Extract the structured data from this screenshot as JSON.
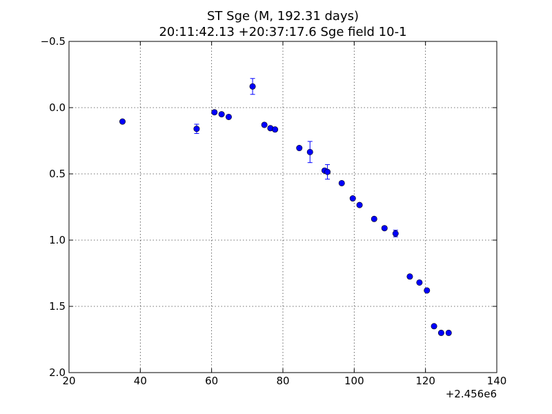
{
  "chart_data": {
    "type": "scatter",
    "title_line1": "ST Sge (M, 192.31 days)",
    "title_line2": "20:11:42.13 +20:37:17.6 Sge field 10-1",
    "xlabel": "",
    "ylabel": "",
    "x_offset_label": "+2.456e6",
    "xlim": [
      20,
      140
    ],
    "ylim": [
      -0.5,
      2.0
    ],
    "y_inverted": true,
    "grid": true,
    "xticks": [
      20,
      40,
      60,
      80,
      100,
      120,
      140
    ],
    "xtick_labels": [
      "20",
      "40",
      "60",
      "80",
      "100",
      "120",
      "140"
    ],
    "yticks": [
      -0.5,
      0.0,
      0.5,
      1.0,
      1.5,
      2.0
    ],
    "ytick_labels": [
      "−0.5",
      "0.0",
      "0.5",
      "1.0",
      "1.5",
      "2.0"
    ],
    "marker_color": "#0000ff",
    "errorbar_color": "#0000ff",
    "points": [
      {
        "x": 35.0,
        "y": 0.105,
        "err": 0.0
      },
      {
        "x": 55.8,
        "y": 0.16,
        "err": 0.035
      },
      {
        "x": 60.8,
        "y": 0.035,
        "err": 0.0
      },
      {
        "x": 62.8,
        "y": 0.05,
        "err": 0.0
      },
      {
        "x": 64.8,
        "y": 0.07,
        "err": 0.0
      },
      {
        "x": 71.5,
        "y": -0.16,
        "err": 0.06
      },
      {
        "x": 74.8,
        "y": 0.13,
        "err": 0.0
      },
      {
        "x": 76.5,
        "y": 0.155,
        "err": 0.0
      },
      {
        "x": 77.8,
        "y": 0.165,
        "err": 0.0
      },
      {
        "x": 84.6,
        "y": 0.305,
        "err": 0.0
      },
      {
        "x": 87.6,
        "y": 0.335,
        "err": 0.08
      },
      {
        "x": 91.7,
        "y": 0.475,
        "err": 0.0
      },
      {
        "x": 92.5,
        "y": 0.485,
        "err": 0.055
      },
      {
        "x": 96.5,
        "y": 0.57,
        "err": 0.0
      },
      {
        "x": 99.6,
        "y": 0.685,
        "err": 0.0
      },
      {
        "x": 101.5,
        "y": 0.735,
        "err": 0.0
      },
      {
        "x": 105.6,
        "y": 0.84,
        "err": 0.0
      },
      {
        "x": 108.5,
        "y": 0.91,
        "err": 0.0
      },
      {
        "x": 111.6,
        "y": 0.95,
        "err": 0.025
      },
      {
        "x": 115.6,
        "y": 1.275,
        "err": 0.0
      },
      {
        "x": 118.3,
        "y": 1.32,
        "err": 0.0
      },
      {
        "x": 120.4,
        "y": 1.38,
        "err": 0.0
      },
      {
        "x": 122.4,
        "y": 1.65,
        "err": 0.0
      },
      {
        "x": 124.4,
        "y": 1.7,
        "err": 0.0
      },
      {
        "x": 126.5,
        "y": 1.7,
        "err": 0.0
      }
    ]
  }
}
